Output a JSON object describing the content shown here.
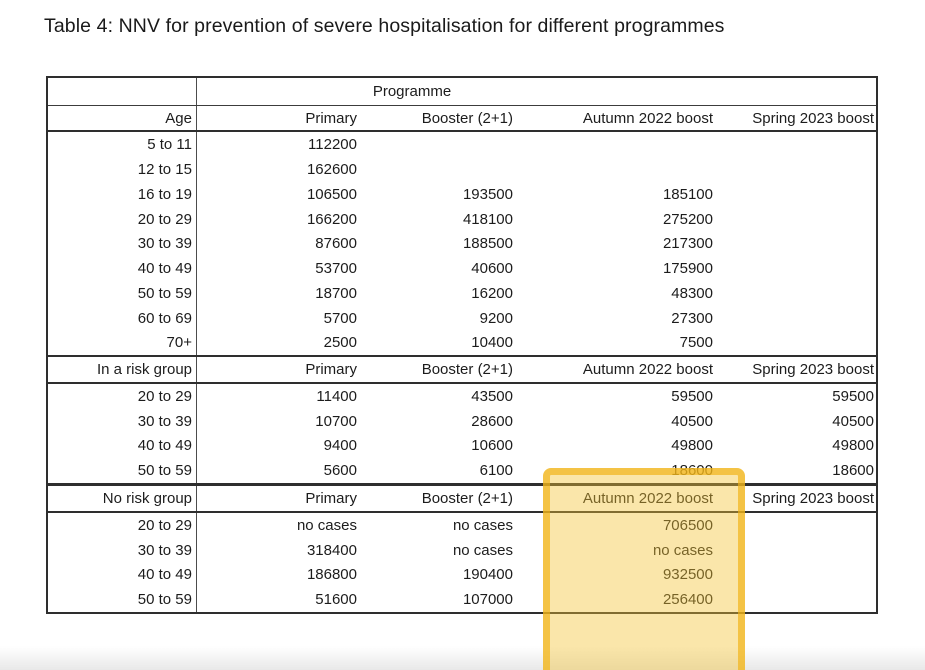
{
  "page": {
    "title": "Table 4: NNV for prevention of severe hospitalisation for different programmes"
  },
  "table": {
    "programme_header": "Programme",
    "column_headers": [
      "Primary",
      "Booster (2+1)",
      "Autumn 2022 boost",
      "Spring 2023 boost"
    ],
    "sections": [
      {
        "label": "Age",
        "rows": [
          {
            "label": "5 to 11",
            "values": [
              "112200",
              "",
              "",
              ""
            ]
          },
          {
            "label": "12 to 15",
            "values": [
              "162600",
              "",
              "",
              ""
            ]
          },
          {
            "label": "16 to 19",
            "values": [
              "106500",
              "193500",
              "185100",
              ""
            ]
          },
          {
            "label": "20 to 29",
            "values": [
              "166200",
              "418100",
              "275200",
              ""
            ]
          },
          {
            "label": "30 to 39",
            "values": [
              "87600",
              "188500",
              "217300",
              ""
            ]
          },
          {
            "label": "40 to 49",
            "values": [
              "53700",
              "40600",
              "175900",
              ""
            ]
          },
          {
            "label": "50 to 59",
            "values": [
              "18700",
              "16200",
              "48300",
              ""
            ]
          },
          {
            "label": "60 to 69",
            "values": [
              "5700",
              "9200",
              "27300",
              ""
            ]
          },
          {
            "label": "70+",
            "values": [
              "2500",
              "10400",
              "7500",
              ""
            ]
          }
        ]
      },
      {
        "label": "In a risk group",
        "rows": [
          {
            "label": "20 to 29",
            "values": [
              "11400",
              "43500",
              "59500",
              "59500"
            ]
          },
          {
            "label": "30 to 39",
            "values": [
              "10700",
              "28600",
              "40500",
              "40500"
            ]
          },
          {
            "label": "40 to 49",
            "values": [
              "9400",
              "10600",
              "49800",
              "49800"
            ]
          },
          {
            "label": "50 to 59",
            "values": [
              "5600",
              "6100",
              "18600",
              "18600"
            ]
          }
        ]
      },
      {
        "label": "No risk group",
        "rows": [
          {
            "label": "20 to 29",
            "values": [
              "no cases",
              "no cases",
              "706500",
              ""
            ]
          },
          {
            "label": "30 to 39",
            "values": [
              "318400",
              "no cases",
              "no cases",
              ""
            ]
          },
          {
            "label": "40 to 49",
            "values": [
              "186800",
              "190400",
              "932500",
              ""
            ]
          },
          {
            "label": "50 to 59",
            "values": [
              "51600",
              "107000",
              "256400",
              ""
            ]
          }
        ]
      }
    ]
  },
  "highlight": {
    "target_column": "Autumn 2022 boost",
    "fill_color": "#f2c434",
    "border_color": "#f0b214"
  }
}
